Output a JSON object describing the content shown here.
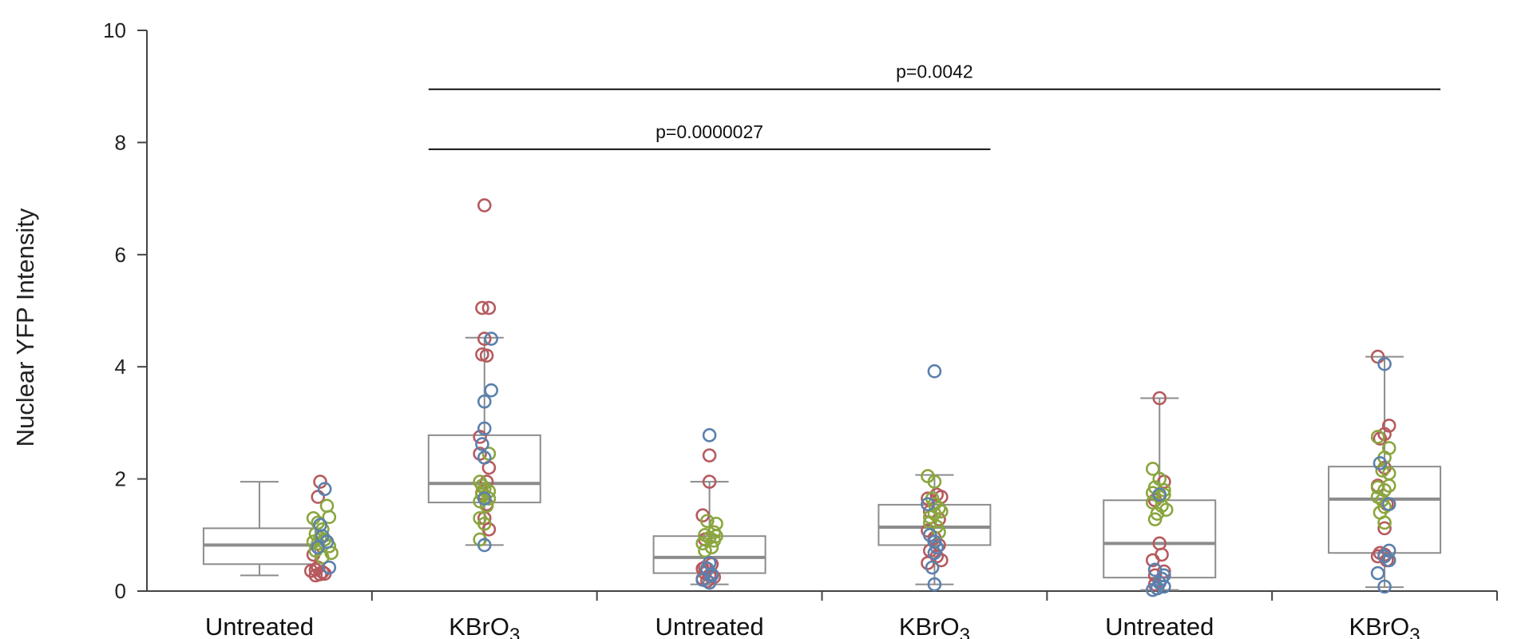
{
  "chart_data": {
    "type": "box",
    "ylabel": "Nuclear YFP Intensity",
    "ylim": [
      0,
      10
    ],
    "yticks": [
      "0",
      "2",
      "4",
      "6",
      "8",
      "10"
    ],
    "categories": [
      {
        "name": "Untreated",
        "sub": ""
      },
      {
        "name": "KBrO",
        "sub": "3"
      },
      {
        "name": "Untreated",
        "sub": ""
      },
      {
        "name": "KBrO",
        "sub": "3"
      },
      {
        "name": "Untreated",
        "sub": ""
      },
      {
        "name": "KBrO",
        "sub": "3"
      }
    ],
    "colors": {
      "red": "#b65a5e",
      "green": "#8aa63e",
      "blue": "#5b80ad",
      "box": "#8c8c8c",
      "median": "#8c8c8c",
      "axis": "#444444"
    },
    "boxes": [
      {
        "min": 0.28,
        "q1": 0.48,
        "median": 0.82,
        "q3": 1.12,
        "max": 1.95
      },
      {
        "min": 0.82,
        "q1": 1.58,
        "median": 1.92,
        "q3": 2.78,
        "max": 4.52
      },
      {
        "min": 0.12,
        "q1": 0.32,
        "median": 0.6,
        "q3": 0.98,
        "max": 1.95
      },
      {
        "min": 0.12,
        "q1": 0.82,
        "median": 1.14,
        "q3": 1.54,
        "max": 2.07
      },
      {
        "min": 0.02,
        "q1": 0.24,
        "median": 0.85,
        "q3": 1.62,
        "max": 3.44
      },
      {
        "min": 0.07,
        "q1": 0.68,
        "median": 1.64,
        "q3": 2.22,
        "max": 4.18
      }
    ],
    "points": [
      {
        "red": [
          [
            0.27,
            1.95
          ],
          [
            0.26,
            1.68
          ],
          [
            0.24,
            0.65
          ],
          [
            0.25,
            0.38
          ],
          [
            0.27,
            0.3
          ],
          [
            0.28,
            0.34
          ],
          [
            0.25,
            0.28
          ],
          [
            0.23,
            0.36
          ],
          [
            0.26,
            0.42
          ],
          [
            0.29,
            0.31
          ]
        ],
        "green": [
          [
            0.24,
            1.3
          ],
          [
            0.3,
            1.52
          ],
          [
            0.31,
            1.32
          ],
          [
            0.26,
            1.22
          ],
          [
            0.28,
            1.1
          ],
          [
            0.25,
            1.02
          ],
          [
            0.27,
            0.95
          ],
          [
            0.24,
            0.88
          ],
          [
            0.29,
            0.92
          ],
          [
            0.31,
            0.8
          ],
          [
            0.25,
            0.72
          ],
          [
            0.32,
            0.68
          ],
          [
            0.28,
            0.6
          ],
          [
            0.26,
            0.85
          ]
        ],
        "blue": [
          [
            0.29,
            1.82
          ],
          [
            0.27,
            1.18
          ],
          [
            0.3,
            0.88
          ],
          [
            0.26,
            0.78
          ],
          [
            0.31,
            0.42
          ],
          [
            0.28,
            0.98
          ]
        ]
      },
      {
        "red": [
          [
            0.0,
            6.88
          ],
          [
            -0.01,
            5.05
          ],
          [
            0.02,
            5.05
          ],
          [
            0.0,
            4.5
          ],
          [
            -0.01,
            4.22
          ],
          [
            0.01,
            4.2
          ],
          [
            -0.02,
            2.75
          ],
          [
            0.02,
            2.2
          ],
          [
            -0.02,
            2.45
          ],
          [
            0.01,
            1.55
          ],
          [
            0.02,
            1.1
          ],
          [
            0.0,
            1.3
          ],
          [
            -0.01,
            1.75
          ],
          [
            0.01,
            1.95
          ]
        ],
        "green": [
          [
            0.02,
            2.45
          ],
          [
            -0.02,
            1.95
          ],
          [
            0.0,
            1.82
          ],
          [
            -0.01,
            1.72
          ],
          [
            0.02,
            1.78
          ],
          [
            -0.02,
            1.6
          ],
          [
            0.01,
            1.52
          ],
          [
            -0.02,
            1.3
          ],
          [
            0.0,
            1.2
          ],
          [
            -0.02,
            0.92
          ],
          [
            0.02,
            1.65
          ],
          [
            -0.01,
            1.88
          ]
        ],
        "blue": [
          [
            0.03,
            4.5
          ],
          [
            0.03,
            3.58
          ],
          [
            0.0,
            3.38
          ],
          [
            0.0,
            2.9
          ],
          [
            -0.01,
            2.62
          ],
          [
            0.0,
            2.38
          ],
          [
            0.0,
            1.65
          ],
          [
            0.0,
            0.82
          ]
        ]
      },
      {
        "red": [
          [
            0.0,
            2.42
          ],
          [
            0.0,
            1.95
          ],
          [
            -0.03,
            1.35
          ],
          [
            -0.02,
            0.92
          ],
          [
            0.01,
            0.48
          ],
          [
            -0.03,
            0.4
          ],
          [
            -0.02,
            0.32
          ],
          [
            0.0,
            0.28
          ],
          [
            -0.03,
            0.22
          ],
          [
            0.02,
            0.25
          ],
          [
            -0.01,
            0.18
          ],
          [
            -0.02,
            0.42
          ]
        ],
        "green": [
          [
            -0.01,
            1.25
          ],
          [
            0.03,
            1.2
          ],
          [
            0.02,
            1.05
          ],
          [
            -0.02,
            1.0
          ],
          [
            0.02,
            0.9
          ],
          [
            -0.03,
            0.85
          ],
          [
            0.01,
            0.78
          ],
          [
            -0.02,
            0.72
          ],
          [
            0.0,
            0.95
          ],
          [
            0.03,
            0.98
          ]
        ],
        "blue": [
          [
            0.0,
            2.78
          ],
          [
            0.0,
            0.5
          ],
          [
            -0.01,
            0.4
          ],
          [
            0.01,
            0.3
          ],
          [
            -0.03,
            0.2
          ],
          [
            0.0,
            0.15
          ],
          [
            0.01,
            0.28
          ]
        ]
      },
      {
        "red": [
          [
            -0.03,
            1.65
          ],
          [
            0.01,
            1.72
          ],
          [
            0.03,
            1.68
          ],
          [
            -0.02,
            1.42
          ],
          [
            0.02,
            1.28
          ],
          [
            -0.03,
            1.08
          ],
          [
            0.0,
            0.95
          ],
          [
            0.02,
            0.82
          ],
          [
            -0.02,
            0.72
          ],
          [
            0.01,
            0.62
          ],
          [
            -0.03,
            0.5
          ],
          [
            0.03,
            0.55
          ],
          [
            0.0,
            0.88
          ]
        ],
        "green": [
          [
            -0.03,
            2.05
          ],
          [
            0.0,
            1.95
          ],
          [
            -0.01,
            1.65
          ],
          [
            0.02,
            1.48
          ],
          [
            -0.02,
            1.32
          ],
          [
            0.0,
            1.55
          ],
          [
            0.03,
            1.42
          ],
          [
            0.01,
            1.15
          ],
          [
            -0.02,
            1.22
          ],
          [
            0.02,
            1.05
          ],
          [
            0.0,
            1.38
          ]
        ],
        "blue": [
          [
            0.0,
            3.92
          ],
          [
            -0.03,
            1.55
          ],
          [
            -0.02,
            1.0
          ],
          [
            0.0,
            0.88
          ],
          [
            0.0,
            0.68
          ],
          [
            -0.01,
            0.42
          ],
          [
            0.0,
            0.12
          ],
          [
            0.01,
            0.78
          ]
        ]
      },
      {
        "red": [
          [
            0.0,
            3.44
          ],
          [
            0.02,
            1.95
          ],
          [
            -0.02,
            1.62
          ],
          [
            0.0,
            0.85
          ],
          [
            -0.03,
            0.55
          ],
          [
            -0.02,
            0.28
          ],
          [
            -0.02,
            0.12
          ],
          [
            0.01,
            0.65
          ],
          [
            -0.01,
            0.05
          ],
          [
            0.02,
            0.35
          ]
        ],
        "green": [
          [
            -0.03,
            2.18
          ],
          [
            0.0,
            2.0
          ],
          [
            -0.02,
            1.85
          ],
          [
            0.02,
            1.8
          ],
          [
            0.0,
            1.68
          ],
          [
            -0.03,
            1.58
          ],
          [
            0.01,
            1.52
          ],
          [
            0.03,
            1.45
          ],
          [
            -0.01,
            1.38
          ],
          [
            -0.02,
            1.28
          ],
          [
            0.02,
            1.72
          ],
          [
            -0.03,
            1.75
          ]
        ],
        "blue": [
          [
            0.0,
            1.72
          ],
          [
            -0.02,
            0.38
          ],
          [
            0.02,
            0.28
          ],
          [
            0.0,
            0.15
          ],
          [
            -0.01,
            0.05
          ],
          [
            -0.03,
            0.02
          ],
          [
            0.02,
            0.08
          ],
          [
            0.01,
            0.22
          ]
        ]
      },
      {
        "red": [
          [
            -0.03,
            4.18
          ],
          [
            0.0,
            2.8
          ],
          [
            0.02,
            2.95
          ],
          [
            -0.02,
            2.72
          ],
          [
            0.0,
            2.2
          ],
          [
            -0.03,
            1.88
          ],
          [
            0.01,
            1.55
          ],
          [
            0.0,
            1.12
          ],
          [
            -0.02,
            0.68
          ],
          [
            0.0,
            0.65
          ],
          [
            0.01,
            0.55
          ],
          [
            -0.03,
            0.62
          ]
        ],
        "green": [
          [
            -0.03,
            2.75
          ],
          [
            0.02,
            2.55
          ],
          [
            0.0,
            2.38
          ],
          [
            -0.01,
            2.15
          ],
          [
            0.02,
            2.1
          ],
          [
            -0.03,
            1.85
          ],
          [
            0.0,
            1.8
          ],
          [
            0.02,
            1.88
          ],
          [
            -0.01,
            1.62
          ],
          [
            0.0,
            1.5
          ],
          [
            -0.02,
            1.4
          ],
          [
            0.0,
            1.22
          ],
          [
            -0.03,
            1.68
          ]
        ],
        "blue": [
          [
            0.0,
            4.05
          ],
          [
            -0.02,
            2.28
          ],
          [
            0.02,
            1.55
          ],
          [
            -0.03,
            0.32
          ],
          [
            0.0,
            0.62
          ],
          [
            0.02,
            0.55
          ],
          [
            0.02,
            0.72
          ],
          [
            0.0,
            0.08
          ]
        ]
      }
    ],
    "significance": [
      {
        "label": "p=0.0042",
        "from": 1,
        "to": 5,
        "y": 8.95
      },
      {
        "label": "p=0.0000027",
        "from": 1,
        "to": 3,
        "y": 7.88
      }
    ]
  }
}
